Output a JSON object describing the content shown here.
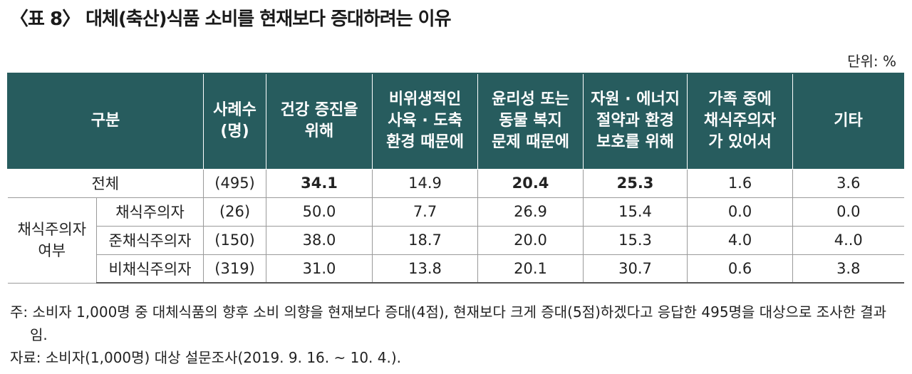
{
  "title": "〈표 8〉 대체(축산)식품 소비를 현재보다 증대하려는 이유",
  "unit": "단위: %",
  "headers": {
    "category": "구분",
    "count": "사례수\n(명)",
    "c1": "건강 증진을\n위해",
    "c2": "비위생적인\n사육 · 도축\n환경 때문에",
    "c3": "윤리성 또는\n동물 복지\n문제 때문에",
    "c4": "자원 · 에너지\n절약과 환경\n보호를 위해",
    "c5": "가족 중에\n채식주의자\n가 있어서",
    "c6": "기타"
  },
  "rows": {
    "total": {
      "label": "전체",
      "count": "(495)",
      "v": [
        "34.1",
        "14.9",
        "20.4",
        "25.3",
        "1.6",
        "3.6"
      ]
    },
    "group_label": "채식주의자\n여부",
    "g1": {
      "label": "채식주의자",
      "count": "(26)",
      "v": [
        "50.0",
        "7.7",
        "26.9",
        "15.4",
        "0.0",
        "0.0"
      ]
    },
    "g2": {
      "label": "준채식주의자",
      "count": "(150)",
      "v": [
        "38.0",
        "18.7",
        "20.0",
        "15.3",
        "4.0",
        "4..0"
      ]
    },
    "g3": {
      "label": "비채식주의자",
      "count": "(319)",
      "v": [
        "31.0",
        "13.8",
        "20.1",
        "30.7",
        "0.6",
        "3.8"
      ]
    }
  },
  "notes": {
    "note1": "주: 소비자 1,000명 중 대체식품의 향후 소비 의향을 현재보다 증대(4점), 현재보다 크게 증대(5점)하겠다고 응답한 495명을 대상으로 조사한 결과",
    "note1_cont": "임.",
    "source": "자료: 소비자(1,000명) 대상 설문조사(2019. 9. 16. ~ 10. 4.)."
  }
}
